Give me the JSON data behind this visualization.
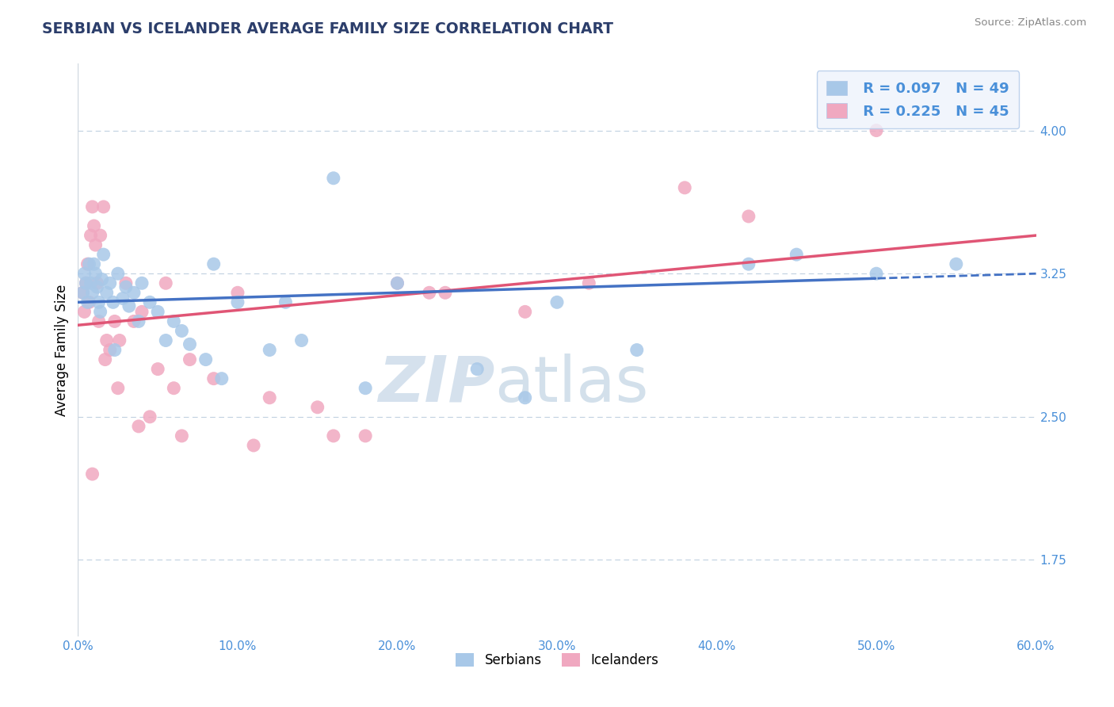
{
  "title": "SERBIAN VS ICELANDER AVERAGE FAMILY SIZE CORRELATION CHART",
  "source": "Source: ZipAtlas.com",
  "ylabel": "Average Family Size",
  "xmin": 0.0,
  "xmax": 60.0,
  "ymin": 1.35,
  "ymax": 4.35,
  "yticks": [
    1.75,
    2.5,
    3.25,
    4.0
  ],
  "xticks": [
    0.0,
    10.0,
    20.0,
    30.0,
    40.0,
    50.0,
    60.0
  ],
  "blue_R": 0.097,
  "blue_N": 49,
  "pink_R": 0.225,
  "pink_N": 45,
  "blue_color": "#a8c8e8",
  "pink_color": "#f0a8c0",
  "trend_blue_color": "#4472c4",
  "trend_pink_color": "#e05575",
  "title_color": "#2c3e6b",
  "axis_color": "#4a90d9",
  "legend_bg": "#eef3fc",
  "legend_border": "#b0c8e8",
  "blue_line_start_y": 3.1,
  "blue_line_end_y": 3.25,
  "pink_line_start_y": 2.98,
  "pink_line_end_y": 3.45,
  "blue_solid_end_x": 50.0,
  "blue_scatter_x": [
    0.3,
    0.4,
    0.5,
    0.6,
    0.7,
    0.8,
    0.9,
    1.0,
    1.1,
    1.2,
    1.3,
    1.5,
    1.6,
    1.8,
    2.0,
    2.2,
    2.5,
    2.8,
    3.0,
    3.2,
    3.5,
    4.0,
    4.5,
    5.0,
    5.5,
    6.0,
    7.0,
    8.0,
    9.0,
    10.0,
    12.0,
    14.0,
    16.0,
    20.0,
    25.0,
    30.0,
    35.0,
    42.0,
    55.0,
    1.4,
    2.3,
    3.8,
    6.5,
    8.5,
    13.0,
    18.0,
    28.0,
    45.0,
    50.0
  ],
  "blue_scatter_y": [
    3.15,
    3.25,
    3.2,
    3.1,
    3.3,
    3.2,
    3.15,
    3.3,
    3.25,
    3.18,
    3.1,
    3.22,
    3.35,
    3.15,
    3.2,
    3.1,
    3.25,
    3.12,
    3.18,
    3.08,
    3.15,
    3.2,
    3.1,
    3.05,
    2.9,
    3.0,
    2.88,
    2.8,
    2.7,
    3.1,
    2.85,
    2.9,
    3.75,
    3.2,
    2.75,
    3.1,
    2.85,
    3.3,
    3.3,
    3.05,
    2.85,
    3.0,
    2.95,
    3.3,
    3.1,
    2.65,
    2.6,
    3.35,
    3.25
  ],
  "pink_scatter_x": [
    0.3,
    0.4,
    0.5,
    0.6,
    0.7,
    0.8,
    0.9,
    1.0,
    1.1,
    1.2,
    1.4,
    1.6,
    1.8,
    2.0,
    2.3,
    2.6,
    3.0,
    3.5,
    4.0,
    4.5,
    5.0,
    5.5,
    6.0,
    7.0,
    8.5,
    10.0,
    12.0,
    15.0,
    18.0,
    20.0,
    23.0,
    28.0,
    32.0,
    38.0,
    50.0,
    0.9,
    1.3,
    1.7,
    2.5,
    3.8,
    6.5,
    11.0,
    16.0,
    22.0,
    42.0
  ],
  "pink_scatter_y": [
    3.15,
    3.05,
    3.2,
    3.3,
    3.1,
    3.45,
    3.6,
    3.5,
    3.4,
    3.2,
    3.45,
    3.6,
    2.9,
    2.85,
    3.0,
    2.9,
    3.2,
    3.0,
    3.05,
    2.5,
    2.75,
    3.2,
    2.65,
    2.8,
    2.7,
    3.15,
    2.6,
    2.55,
    2.4,
    3.2,
    3.15,
    3.05,
    3.2,
    3.7,
    4.0,
    2.2,
    3.0,
    2.8,
    2.65,
    2.45,
    2.4,
    2.35,
    2.4,
    3.15,
    3.55
  ]
}
